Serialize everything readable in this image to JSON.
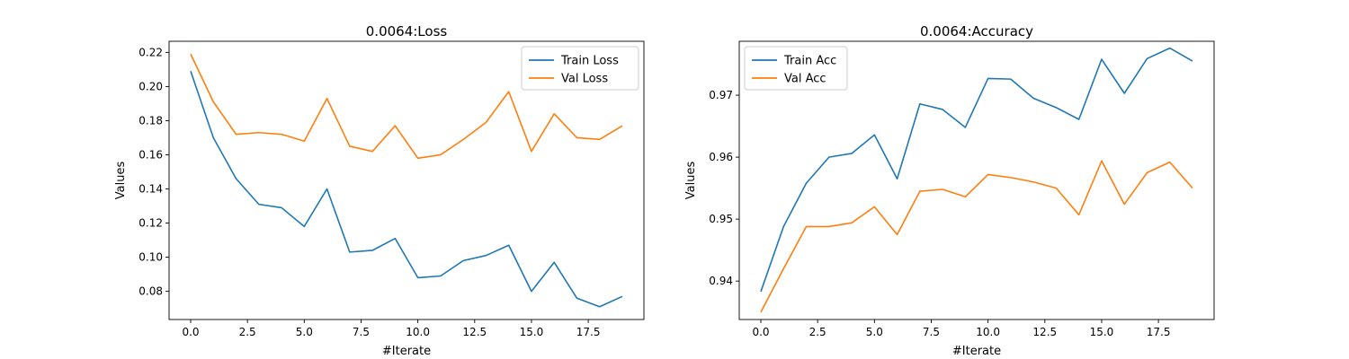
{
  "colors": {
    "train": "#1f77b4",
    "val": "#ff7f0e"
  },
  "chart_data": [
    {
      "type": "line",
      "title": "0.0064:Loss",
      "xlabel": "#Iterate",
      "ylabel": "Values",
      "xlim": [
        -0.95,
        19.95
      ],
      "ylim": [
        0.0635,
        0.2265
      ],
      "xticks": [
        0,
        2.5,
        5,
        7.5,
        10,
        12.5,
        15,
        17.5
      ],
      "xtick_labels": [
        "0.0",
        "2.5",
        "5.0",
        "7.5",
        "10.0",
        "12.5",
        "15.0",
        "17.5"
      ],
      "yticks": [
        0.08,
        0.1,
        0.12,
        0.14,
        0.16,
        0.18,
        0.2,
        0.22
      ],
      "ytick_labels": [
        "0.08",
        "0.10",
        "0.12",
        "0.14",
        "0.16",
        "0.18",
        "0.20",
        "0.22"
      ],
      "legend_position": "top-right",
      "x": [
        0,
        1,
        2,
        3,
        4,
        5,
        6,
        7,
        8,
        9,
        10,
        11,
        12,
        13,
        14,
        15,
        16,
        17,
        18,
        19
      ],
      "series": [
        {
          "name": "Train Loss",
          "color": "#1f77b4",
          "values": [
            0.209,
            0.17,
            0.146,
            0.131,
            0.129,
            0.118,
            0.14,
            0.103,
            0.104,
            0.111,
            0.088,
            0.089,
            0.098,
            0.101,
            0.107,
            0.08,
            0.097,
            0.076,
            0.071,
            0.077
          ]
        },
        {
          "name": "Val Loss",
          "color": "#ff7f0e",
          "values": [
            0.219,
            0.191,
            0.172,
            0.173,
            0.172,
            0.168,
            0.193,
            0.165,
            0.162,
            0.177,
            0.158,
            0.16,
            0.169,
            0.179,
            0.197,
            0.162,
            0.184,
            0.17,
            0.169,
            0.177
          ]
        }
      ]
    },
    {
      "type": "line",
      "title": "0.0064:Accuracy",
      "xlabel": "#Iterate",
      "ylabel": "Values",
      "xlim": [
        -0.95,
        19.95
      ],
      "ylim": [
        0.9338,
        0.9787
      ],
      "xticks": [
        0,
        2.5,
        5,
        7.5,
        10,
        12.5,
        15,
        17.5
      ],
      "xtick_labels": [
        "0.0",
        "2.5",
        "5.0",
        "7.5",
        "10.0",
        "12.5",
        "15.0",
        "17.5"
      ],
      "yticks": [
        0.94,
        0.95,
        0.96,
        0.97
      ],
      "ytick_labels": [
        "0.94",
        "0.95",
        "0.96",
        "0.97"
      ],
      "legend_position": "top-left",
      "x": [
        0,
        1,
        2,
        3,
        4,
        5,
        6,
        7,
        8,
        9,
        10,
        11,
        12,
        13,
        14,
        15,
        16,
        17,
        18,
        19
      ],
      "series": [
        {
          "name": "Train Acc",
          "color": "#1f77b4",
          "values": [
            0.9383,
            0.9488,
            0.9558,
            0.96,
            0.9606,
            0.9636,
            0.9565,
            0.9686,
            0.9677,
            0.9648,
            0.9727,
            0.9726,
            0.9695,
            0.968,
            0.9661,
            0.9758,
            0.9703,
            0.9759,
            0.9776,
            0.9755
          ]
        },
        {
          "name": "Val Acc",
          "color": "#ff7f0e",
          "values": [
            0.935,
            0.942,
            0.9488,
            0.9488,
            0.9494,
            0.952,
            0.9475,
            0.9545,
            0.9548,
            0.9536,
            0.9572,
            0.9567,
            0.956,
            0.955,
            0.9507,
            0.9594,
            0.9524,
            0.9575,
            0.9592,
            0.955
          ]
        }
      ]
    }
  ]
}
